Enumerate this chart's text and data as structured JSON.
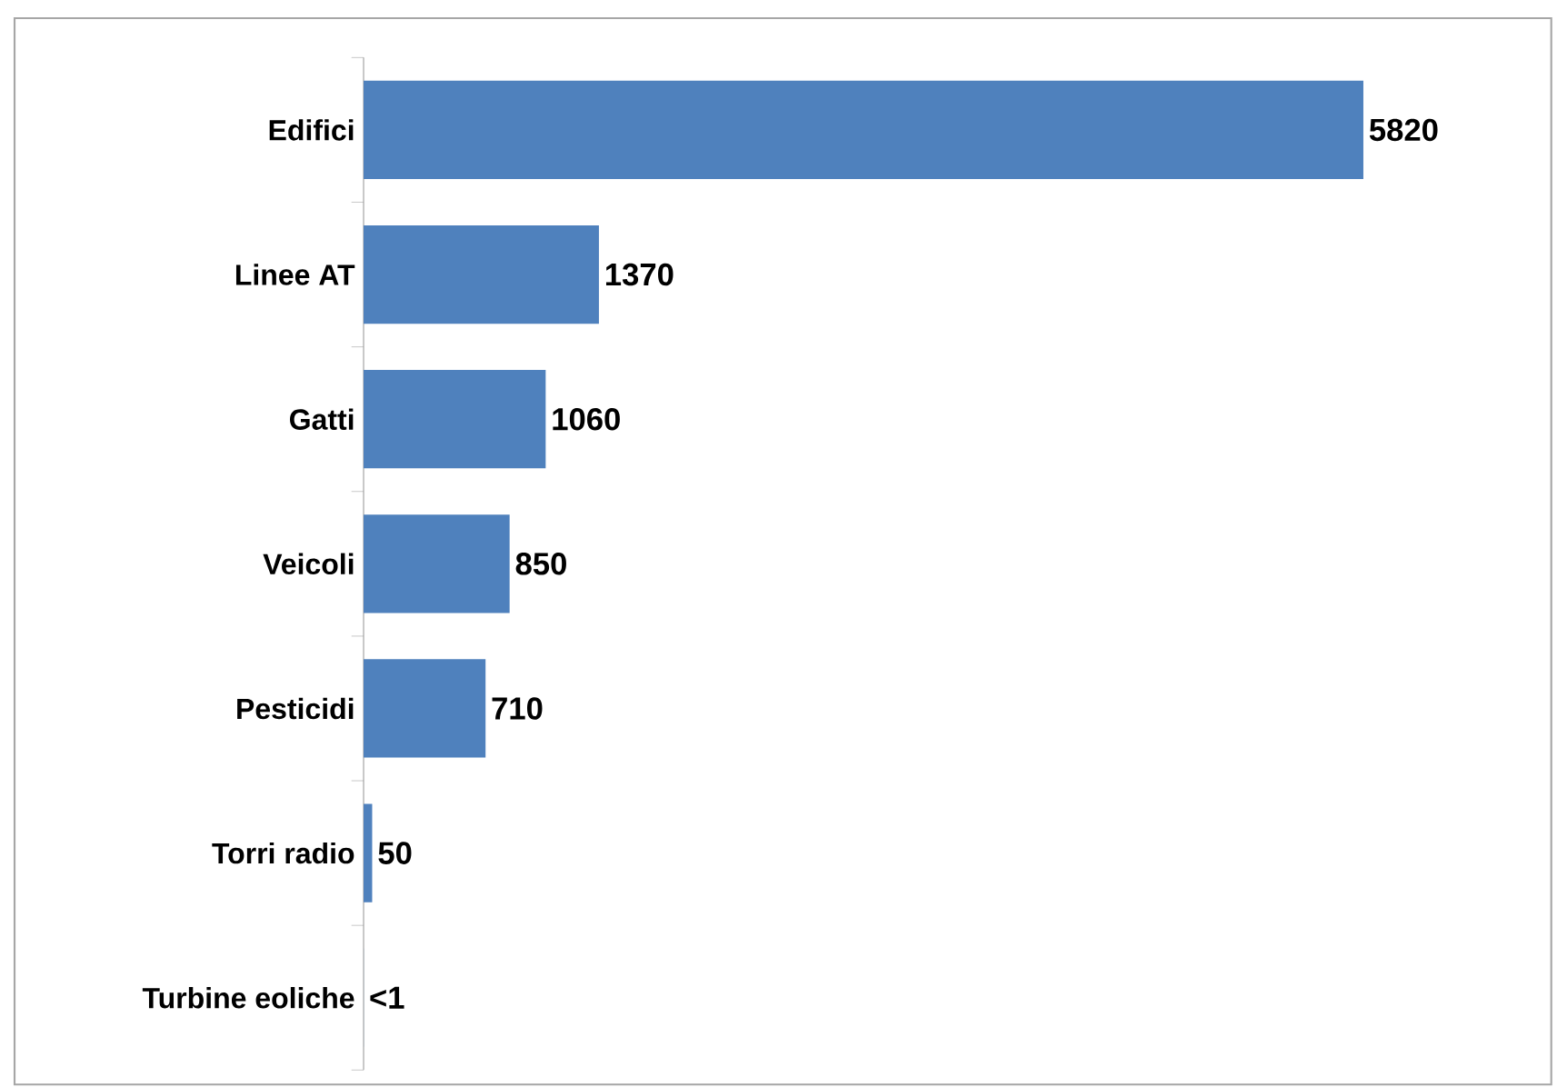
{
  "chart_data": {
    "type": "bar",
    "orientation": "horizontal",
    "categories": [
      "Edifici",
      "Linee AT",
      "Gatti",
      "Veicoli",
      "Pesticidi",
      "Torri radio",
      "Turbine eoliche"
    ],
    "values": [
      5820,
      1370,
      1060,
      850,
      710,
      50,
      0.5
    ],
    "value_labels": [
      "5820",
      "1370",
      "1060",
      "850",
      "710",
      "50",
      "<1"
    ],
    "color": "#4f81bd"
  }
}
